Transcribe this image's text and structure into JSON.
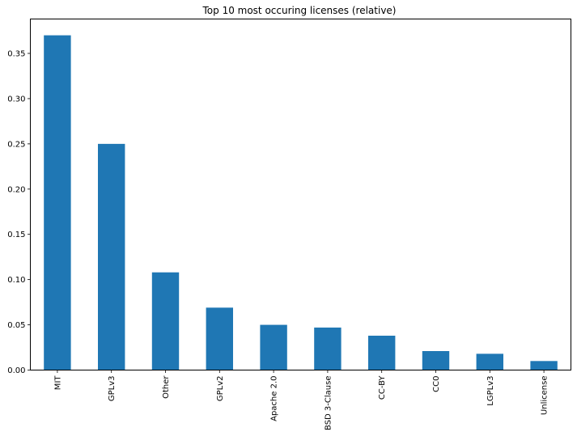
{
  "chart_data": {
    "type": "bar",
    "title": "Top 10 most occuring licenses (relative)",
    "xlabel": "",
    "ylabel": "",
    "categories": [
      "MIT",
      "GPLv3",
      "Other",
      "GPLv2",
      "Apache 2.0",
      "BSD 3-Clause",
      "CC-BY",
      "CC0",
      "LGPLv3",
      "Unlicense"
    ],
    "values": [
      0.37,
      0.25,
      0.108,
      0.069,
      0.05,
      0.047,
      0.038,
      0.021,
      0.018,
      0.01
    ],
    "ylim": [
      0,
      0.388
    ],
    "yticks": [
      0.0,
      0.05,
      0.1,
      0.15,
      0.2,
      0.25,
      0.3,
      0.35
    ],
    "ytick_labels": [
      "0.00",
      "0.05",
      "0.10",
      "0.15",
      "0.20",
      "0.25",
      "0.30",
      "0.35"
    ],
    "bar_color": "#1f77b4",
    "grid": false,
    "legend": "none"
  }
}
